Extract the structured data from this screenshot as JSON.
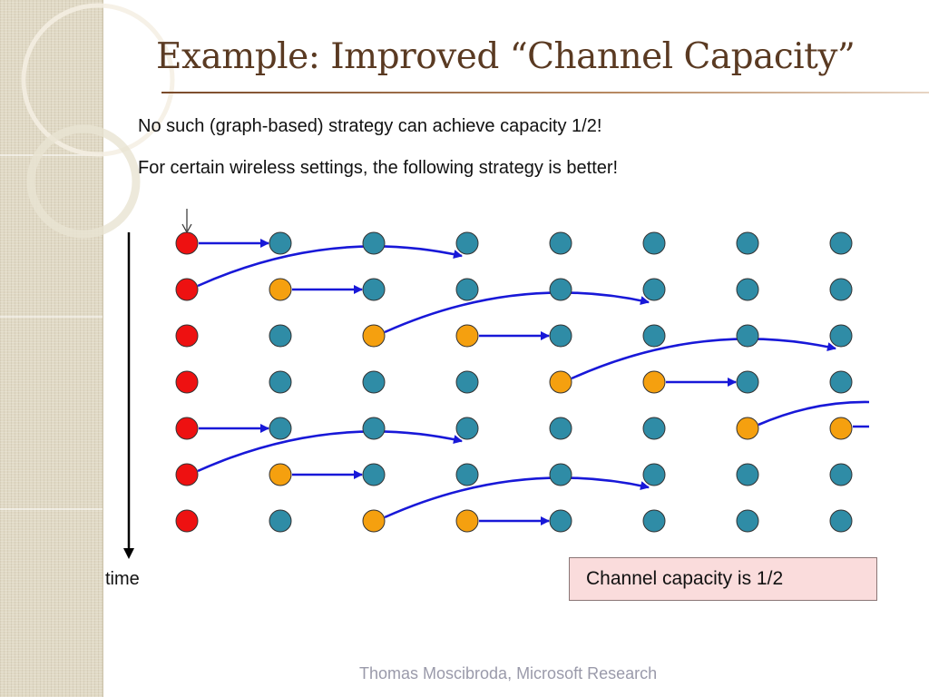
{
  "slide": {
    "title": "Example:  Improved “Channel Capacity”",
    "line1": "No such (graph-based) strategy can achieve capacity 1/2!",
    "line2": "For certain wireless settings, the following strategy is better!",
    "time_label": "time",
    "callout": "Channel capacity is 1/2",
    "footer": "Thomas Moscibroda, Microsoft Research"
  },
  "colors": {
    "source": "#ee1111",
    "relay": "#f5a00f",
    "idle": "#2f8ca6",
    "arrow": "#1818d8",
    "node_stroke": "#333333"
  },
  "diagram": {
    "columns": 8,
    "rows": 7,
    "node_states": [
      [
        "source",
        "idle",
        "idle",
        "idle",
        "idle",
        "idle",
        "idle",
        "idle"
      ],
      [
        "source",
        "relay",
        "idle",
        "idle",
        "idle",
        "idle",
        "idle",
        "idle"
      ],
      [
        "source",
        "idle",
        "relay",
        "relay",
        "idle",
        "idle",
        "idle",
        "idle"
      ],
      [
        "source",
        "idle",
        "idle",
        "idle",
        "relay",
        "relay",
        "idle",
        "idle"
      ],
      [
        "source",
        "idle",
        "idle",
        "idle",
        "idle",
        "idle",
        "relay",
        "relay"
      ],
      [
        "source",
        "relay",
        "idle",
        "idle",
        "idle",
        "idle",
        "idle",
        "idle"
      ],
      [
        "source",
        "idle",
        "relay",
        "relay",
        "idle",
        "idle",
        "idle",
        "idle"
      ]
    ],
    "straight_arrows": [
      {
        "row": 0,
        "from_col": 0,
        "to_col": 1
      },
      {
        "row": 1,
        "from_col": 1,
        "to_col": 2
      },
      {
        "row": 2,
        "from_col": 3,
        "to_col": 4
      },
      {
        "row": 3,
        "from_col": 5,
        "to_col": 6
      },
      {
        "row": 4,
        "from_col": 0,
        "to_col": 1
      },
      {
        "row": 5,
        "from_col": 1,
        "to_col": 2
      },
      {
        "row": 6,
        "from_col": 3,
        "to_col": 4
      }
    ],
    "curved_arrows": [
      {
        "row": 1,
        "from_col": 0,
        "to_col": 3
      },
      {
        "row": 2,
        "from_col": 2,
        "to_col": 5
      },
      {
        "row": 3,
        "from_col": 4,
        "to_col": 7
      },
      {
        "row": 5,
        "from_col": 0,
        "to_col": 3
      },
      {
        "row": 6,
        "from_col": 2,
        "to_col": 5
      }
    ],
    "partial_arrows_out": [
      {
        "row": 4,
        "from_col": 6,
        "kind": "curved"
      },
      {
        "row": 4,
        "from_col": 7,
        "kind": "straight"
      }
    ]
  }
}
